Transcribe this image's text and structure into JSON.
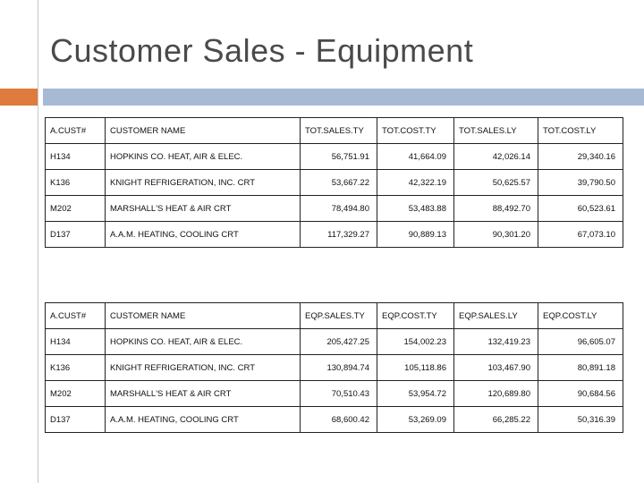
{
  "title": "Customer Sales - Equipment",
  "colors": {
    "accent_orange": "#df7b3c",
    "accent_blue": "#a7b9d3",
    "title": "#4a4a4a"
  },
  "table1": {
    "headers": [
      "A.CUST#",
      "CUSTOMER NAME",
      "TOT.SALES.TY",
      "TOT.COST.TY",
      "TOT.SALES.LY",
      "TOT.COST.LY"
    ],
    "rows": [
      [
        "H134",
        "HOPKINS CO. HEAT, AIR & ELEC.",
        "56,751.91",
        "41,664.09",
        "42,026.14",
        "29,340.16"
      ],
      [
        "K136",
        "KNIGHT REFRIGERATION, INC. CRT",
        "53,667.22",
        "42,322.19",
        "50,625.57",
        "39,790.50"
      ],
      [
        "M202",
        "MARSHALL'S HEAT & AIR CRT",
        "78,494.80",
        "53,483.88",
        "88,492.70",
        "60,523.61"
      ],
      [
        "D137",
        "A.A.M. HEATING, COOLING CRT",
        "117,329.27",
        "90,889.13",
        "90,301.20",
        "67,073.10"
      ]
    ]
  },
  "table2": {
    "headers": [
      "A.CUST#",
      "CUSTOMER NAME",
      "EQP.SALES.TY",
      "EQP.COST.TY",
      "EQP.SALES.LY",
      "EQP.COST.LY"
    ],
    "rows": [
      [
        "H134",
        "HOPKINS CO. HEAT, AIR & ELEC.",
        "205,427.25",
        "154,002.23",
        "132,419.23",
        "96,605.07"
      ],
      [
        "K136",
        "KNIGHT REFRIGERATION, INC. CRT",
        "130,894.74",
        "105,118.86",
        "103,467.90",
        "80,891.18"
      ],
      [
        "M202",
        "MARSHALL'S HEAT & AIR CRT",
        "70,510.43",
        "53,954.72",
        "120,689.80",
        "90,684.56"
      ],
      [
        "D137",
        "A.A.M. HEATING, COOLING CRT",
        "68,600.42",
        "53,269.09",
        "66,285.22",
        "50,316.39"
      ]
    ]
  }
}
